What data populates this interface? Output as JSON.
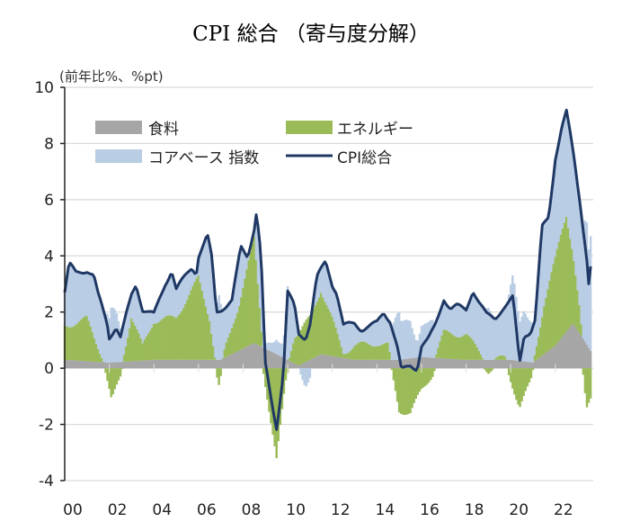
{
  "chart_data": {
    "type": "bar",
    "subtype": "stacked-bar-with-line",
    "title": "CPI 総合 （寄与度分解）",
    "ylabel": "(前年比%、%pt)",
    "xlabel": "",
    "ylim": [
      -4,
      10
    ],
    "yticks": [
      "10",
      "8",
      "6",
      "4",
      "2",
      "0",
      "-2",
      "-4"
    ],
    "yticks_values": [
      10,
      8,
      6,
      4,
      2,
      0,
      -2,
      -4
    ],
    "xlim": [
      2000,
      2023.7
    ],
    "xticks": [
      "00",
      "02",
      "04",
      "06",
      "08",
      "10",
      "12",
      "14",
      "16",
      "18",
      "20",
      "22"
    ],
    "grid": true,
    "legend_position": "top-left",
    "colors": {
      "food": "#a6a6a6",
      "energy": "#9bbb59",
      "core": "#b9cde5",
      "cpi": "#1f3864",
      "grid": "#d9d9d9"
    },
    "legend": {
      "food": "食料",
      "energy": "エネルギー",
      "core": "コアベース 指数",
      "cpi": "CPI総合"
    },
    "note": "series given as [year, value] keypoints, interpolated monthly; core = cpi - energy - food",
    "series": {
      "cpi": [
        [
          2000,
          2.7
        ],
        [
          2000.2,
          3.7
        ],
        [
          2000.5,
          3.4
        ],
        [
          2001,
          3.5
        ],
        [
          2001.3,
          3.3
        ],
        [
          2001.5,
          2.6
        ],
        [
          2001.9,
          1.6
        ],
        [
          2002,
          1.1
        ],
        [
          2002.3,
          1.5
        ],
        [
          2002.5,
          1.1
        ],
        [
          2003,
          2.6
        ],
        [
          2003.2,
          3.0
        ],
        [
          2003.5,
          2.1
        ],
        [
          2004,
          1.9
        ],
        [
          2004.5,
          3.0
        ],
        [
          2004.8,
          3.5
        ],
        [
          2005,
          2.8
        ],
        [
          2005.7,
          3.6
        ],
        [
          2005.9,
          3.4
        ],
        [
          2006,
          4.0
        ],
        [
          2006.4,
          4.7
        ],
        [
          2006.6,
          3.9
        ],
        [
          2006.8,
          2.0
        ],
        [
          2007,
          2.1
        ],
        [
          2007.5,
          2.4
        ],
        [
          2007.9,
          4.3
        ],
        [
          2008.2,
          4.0
        ],
        [
          2008.5,
          5.0
        ],
        [
          2008.6,
          5.6
        ],
        [
          2008.8,
          4.0
        ],
        [
          2009,
          0.1
        ],
        [
          2009.3,
          -1.3
        ],
        [
          2009.5,
          -2.1
        ],
        [
          2009.8,
          -0.2
        ],
        [
          2010,
          2.7
        ],
        [
          2010.3,
          2.2
        ],
        [
          2010.5,
          1.2
        ],
        [
          2010.8,
          1.1
        ],
        [
          2011,
          1.6
        ],
        [
          2011.3,
          3.2
        ],
        [
          2011.7,
          3.8
        ],
        [
          2012,
          3.0
        ],
        [
          2012.2,
          2.7
        ],
        [
          2012.5,
          1.5
        ],
        [
          2013,
          1.6
        ],
        [
          2013.3,
          1.4
        ],
        [
          2013.7,
          1.5
        ],
        [
          2014,
          1.6
        ],
        [
          2014.3,
          2.0
        ],
        [
          2014.6,
          1.7
        ],
        [
          2014.9,
          0.8
        ],
        [
          2015.1,
          -0.1
        ],
        [
          2015.5,
          0.1
        ],
        [
          2015.8,
          0.0
        ],
        [
          2016,
          0.8
        ],
        [
          2016.3,
          1.0
        ],
        [
          2016.6,
          1.5
        ],
        [
          2017,
          2.5
        ],
        [
          2017.3,
          2.1
        ],
        [
          2017.6,
          2.2
        ],
        [
          2018,
          2.1
        ],
        [
          2018.3,
          2.8
        ],
        [
          2018.6,
          2.3
        ],
        [
          2018.9,
          1.9
        ],
        [
          2019.3,
          1.8
        ],
        [
          2019.6,
          2.1
        ],
        [
          2019.9,
          2.3
        ],
        [
          2020.1,
          2.5
        ],
        [
          2020.4,
          0.2
        ],
        [
          2020.6,
          1.2
        ],
        [
          2020.9,
          1.3
        ],
        [
          2021.1,
          1.7
        ],
        [
          2021.4,
          5.0
        ],
        [
          2021.7,
          5.4
        ],
        [
          2022,
          7.5
        ],
        [
          2022.3,
          8.6
        ],
        [
          2022.5,
          9.1
        ],
        [
          2022.8,
          7.7
        ],
        [
          2023.1,
          6.0
        ],
        [
          2023.4,
          4.0
        ],
        [
          2023.5,
          3.0
        ],
        [
          2023.6,
          3.7
        ]
      ],
      "energy": [
        [
          2000,
          1.2
        ],
        [
          2001,
          1.5
        ],
        [
          2001.8,
          0.0
        ],
        [
          2002.1,
          -1.2
        ],
        [
          2002.5,
          -0.3
        ],
        [
          2003,
          1.6
        ],
        [
          2003.5,
          0.5
        ],
        [
          2004,
          1.4
        ],
        [
          2005,
          1.5
        ],
        [
          2006,
          2.9
        ],
        [
          2006.5,
          1.5
        ],
        [
          2006.9,
          -0.7
        ],
        [
          2007.2,
          0.3
        ],
        [
          2007.8,
          1.6
        ],
        [
          2008.5,
          3.7
        ],
        [
          2008.9,
          0.0
        ],
        [
          2009.5,
          -3.3
        ],
        [
          2009.9,
          -0.5
        ],
        [
          2010.3,
          1.0
        ],
        [
          2011,
          1.5
        ],
        [
          2011.5,
          2.3
        ],
        [
          2012,
          1.3
        ],
        [
          2012.5,
          0.2
        ],
        [
          2013,
          0.5
        ],
        [
          2014,
          0.6
        ],
        [
          2014.5,
          0.5
        ],
        [
          2015,
          -1.5
        ],
        [
          2015.5,
          -1.6
        ],
        [
          2016,
          -0.8
        ],
        [
          2016.5,
          -0.2
        ],
        [
          2017,
          0.9
        ],
        [
          2018,
          0.9
        ],
        [
          2018.5,
          0.4
        ],
        [
          2019,
          -0.1
        ],
        [
          2019.8,
          0.1
        ],
        [
          2020.4,
          -1.4
        ],
        [
          2020.9,
          -0.5
        ],
        [
          2021.1,
          0.3
        ],
        [
          2021.5,
          1.8
        ],
        [
          2022.3,
          3.8
        ],
        [
          2022.5,
          4.2
        ],
        [
          2022.8,
          2.5
        ],
        [
          2023.1,
          0.8
        ],
        [
          2023.4,
          -1.5
        ],
        [
          2023.6,
          -1.0
        ]
      ],
      "food": [
        [
          2000,
          0.3
        ],
        [
          2002,
          0.2
        ],
        [
          2004,
          0.3
        ],
        [
          2007,
          0.3
        ],
        [
          2008.5,
          0.9
        ],
        [
          2009.5,
          0.5
        ],
        [
          2010.5,
          0.1
        ],
        [
          2011.5,
          0.5
        ],
        [
          2013,
          0.3
        ],
        [
          2015,
          0.3
        ],
        [
          2016,
          0.4
        ],
        [
          2018,
          0.3
        ],
        [
          2020,
          0.3
        ],
        [
          2021,
          0.2
        ],
        [
          2022,
          0.8
        ],
        [
          2022.8,
          1.6
        ],
        [
          2023.3,
          1.0
        ],
        [
          2023.6,
          0.6
        ]
      ]
    }
  }
}
